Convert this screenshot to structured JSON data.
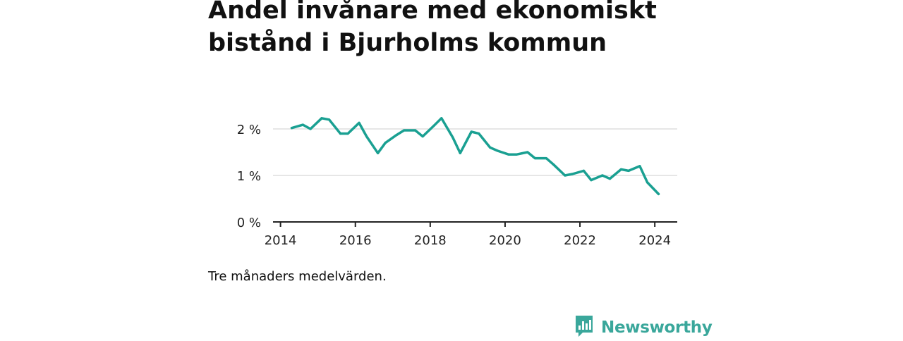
{
  "header": {
    "title": "Andel invånare med ekonomiskt bistånd i Bjurholms kommun"
  },
  "footnote": "Tre månaders medelvärden.",
  "brand": {
    "name": "Newsworthy",
    "icon": "newsworthy-logo-icon"
  },
  "colors": {
    "line": "#1aa092",
    "grid": "#dddddd",
    "axis": "#222222",
    "brand": "#3aa79b"
  },
  "chart_data": {
    "type": "line",
    "title": "Andel invånare med ekonomiskt bistånd i Bjurholms kommun",
    "xlabel": "",
    "ylabel": "",
    "xlim": [
      2013.8,
      2024.6
    ],
    "ylim": [
      0,
      2.5
    ],
    "grid": true,
    "x_ticks": [
      2014,
      2016,
      2018,
      2020,
      2022,
      2024
    ],
    "x_tick_labels": [
      "2014",
      "2016",
      "2018",
      "2020",
      "2022",
      "2024"
    ],
    "y_ticks": [
      0,
      1,
      2
    ],
    "y_tick_labels": [
      "0 %",
      "1 %",
      "2 %"
    ],
    "series": [
      {
        "x": [
          2014.3,
          2014.6,
          2014.8,
          2015.1,
          2015.3,
          2015.6,
          2015.8,
          2016.1,
          2016.3,
          2016.6,
          2016.8,
          2017.1,
          2017.3,
          2017.6,
          2017.8,
          2018.1,
          2018.3,
          2018.6,
          2018.8,
          2019.1,
          2019.3,
          2019.6,
          2019.8,
          2020.1,
          2020.3,
          2020.6,
          2020.8,
          2021.1,
          2021.3,
          2021.6,
          2021.8,
          2022.1,
          2022.3,
          2022.6,
          2022.8,
          2023.1,
          2023.3,
          2023.6,
          2023.8,
          2024.1
        ],
        "values": [
          2.02,
          2.09,
          2.0,
          2.23,
          2.2,
          1.9,
          1.9,
          2.13,
          1.84,
          1.48,
          1.7,
          1.87,
          1.97,
          1.97,
          1.84,
          2.07,
          2.23,
          1.82,
          1.48,
          1.94,
          1.9,
          1.6,
          1.53,
          1.45,
          1.45,
          1.5,
          1.37,
          1.37,
          1.23,
          1.0,
          1.03,
          1.1,
          0.9,
          1.0,
          0.93,
          1.13,
          1.1,
          1.2,
          0.85,
          0.6
        ]
      }
    ]
  }
}
